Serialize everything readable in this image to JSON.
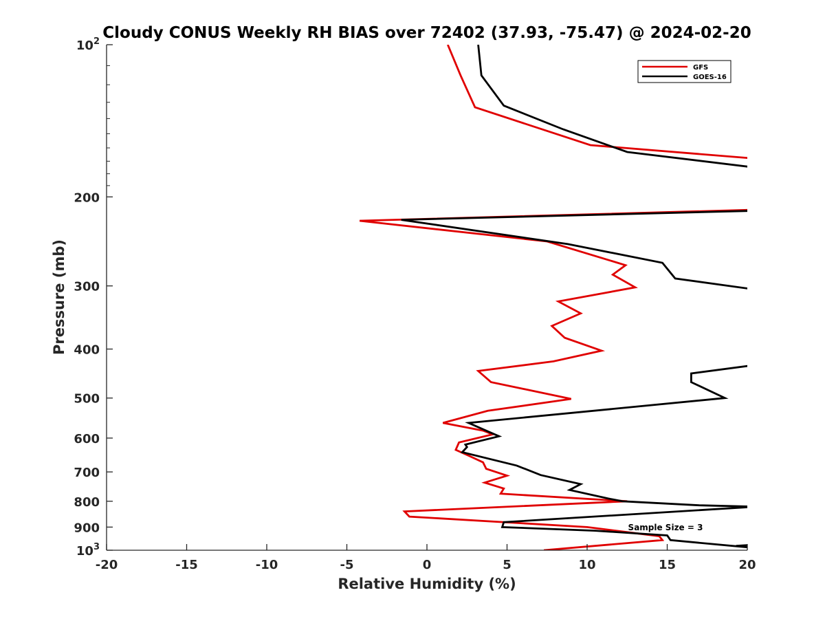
{
  "chart_data": {
    "type": "line",
    "title": "Cloudy CONUS Weekly RH BIAS over 72402 (37.93, -75.47) @ 2024-02-20",
    "xlabel": "Relative Humidity (%)",
    "ylabel": "Pressure (mb)",
    "xlim": [
      -20,
      20
    ],
    "ylim": [
      100,
      1000
    ],
    "y_scale": "log",
    "y_reversed": true,
    "grid": false,
    "legend_position": "top-right",
    "x_ticks": [
      "-20",
      "-15",
      "-10",
      "-5",
      "0",
      "5",
      "10",
      "15",
      "20"
    ],
    "y_ticks": [
      {
        "value": 100,
        "base": "10",
        "exp": "2"
      },
      {
        "value": 200,
        "label": "200"
      },
      {
        "value": 300,
        "label": "300"
      },
      {
        "value": 400,
        "label": "400"
      },
      {
        "value": 500,
        "label": "500"
      },
      {
        "value": 600,
        "label": "600"
      },
      {
        "value": 700,
        "label": "700"
      },
      {
        "value": 800,
        "label": "800"
      },
      {
        "value": 900,
        "label": "900"
      },
      {
        "value": 1000,
        "base": "10",
        "exp": "3"
      }
    ],
    "annotation": "Sample Size = 3",
    "series": [
      {
        "name": "GFS",
        "color": "#e00000",
        "points": [
          [
            1.3,
            100
          ],
          [
            2.1,
            115
          ],
          [
            3.0,
            133
          ],
          [
            10.2,
            158
          ],
          [
            20.5,
            168
          ],
          null,
          [
            20.5,
            212
          ],
          [
            -4.2,
            223
          ],
          [
            7.5,
            245
          ],
          [
            12.4,
            273
          ],
          [
            11.6,
            285
          ],
          [
            13.0,
            302
          ],
          [
            8.2,
            322
          ],
          [
            9.6,
            340
          ],
          [
            7.8,
            360
          ],
          [
            8.6,
            380
          ],
          [
            10.9,
            403
          ],
          [
            7.9,
            423
          ],
          [
            3.2,
            442
          ],
          [
            4.0,
            465
          ],
          [
            9.0,
            502
          ],
          [
            3.8,
            530
          ],
          [
            1.0,
            560
          ],
          [
            3.5,
            580
          ],
          [
            4.1,
            590
          ],
          [
            2.0,
            612
          ],
          [
            1.8,
            633
          ],
          [
            2.6,
            650
          ],
          [
            3.5,
            670
          ],
          [
            3.7,
            690
          ],
          [
            5.0,
            712
          ],
          [
            3.6,
            735
          ],
          [
            4.8,
            755
          ],
          [
            4.6,
            773
          ],
          [
            12.5,
            800
          ],
          [
            -1.4,
            838
          ],
          [
            -1.1,
            858
          ],
          [
            10.0,
            900
          ],
          [
            14.5,
            938
          ],
          [
            14.7,
            955
          ],
          [
            7.3,
            1000
          ]
        ]
      },
      {
        "name": "GOES-16",
        "color": "#000000",
        "points": [
          [
            3.2,
            100
          ],
          [
            3.4,
            115
          ],
          [
            4.8,
            132
          ],
          [
            8.5,
            147
          ],
          [
            12.5,
            163
          ],
          [
            20.5,
            175
          ],
          null,
          [
            20.5,
            213
          ],
          [
            -1.6,
            222
          ],
          [
            8.8,
            248
          ],
          [
            14.7,
            270
          ],
          [
            15.5,
            290
          ],
          [
            20.5,
            305
          ],
          null,
          [
            20.5,
            430
          ],
          [
            16.5,
            447
          ],
          [
            16.5,
            465
          ],
          [
            18.6,
            500
          ],
          [
            2.6,
            560
          ],
          [
            3.8,
            582
          ],
          [
            4.5,
            595
          ],
          [
            2.4,
            618
          ],
          [
            2.5,
            625
          ],
          [
            2.2,
            640
          ],
          [
            5.6,
            680
          ],
          [
            7.1,
            710
          ],
          [
            9.6,
            740
          ],
          [
            8.9,
            760
          ],
          [
            11.3,
            790
          ],
          [
            12.2,
            800
          ],
          [
            17.0,
            815
          ],
          [
            20.5,
            820
          ],
          [
            4.8,
            880
          ],
          [
            4.7,
            900
          ],
          [
            10.5,
            915
          ],
          [
            15.0,
            935
          ],
          [
            15.2,
            955
          ],
          [
            20.5,
            990
          ],
          [
            19.3,
            980
          ],
          [
            20.5,
            975
          ]
        ]
      }
    ]
  }
}
